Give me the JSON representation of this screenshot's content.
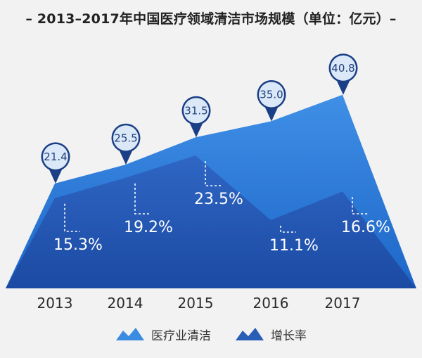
{
  "chart_data": {
    "type": "area",
    "title": "– 2013–2017年中国医疗领域清洁市场规模（单位：亿元）–",
    "categories": [
      "2013",
      "2014",
      "2015",
      "2016",
      "2017"
    ],
    "series": [
      {
        "name": "医疗业清洁",
        "values": [
          21.4,
          25.5,
          31.5,
          35.0,
          40.8
        ],
        "color": "#3b8de0"
      },
      {
        "name": "增长率",
        "values": [
          15.3,
          19.2,
          23.5,
          11.1,
          16.6
        ],
        "unit": "%",
        "color": "#2c5fb8"
      }
    ],
    "value_labels": [
      "21.4",
      "25.5",
      "31.5",
      "35.0",
      "40.8"
    ],
    "growth_labels": [
      "15.3%",
      "19.2%",
      "23.5%",
      "11.1%",
      "16.6%"
    ],
    "legend": {
      "position": "bottom-center",
      "items": [
        "医疗业清洁",
        "增长率"
      ]
    },
    "grid": false
  }
}
